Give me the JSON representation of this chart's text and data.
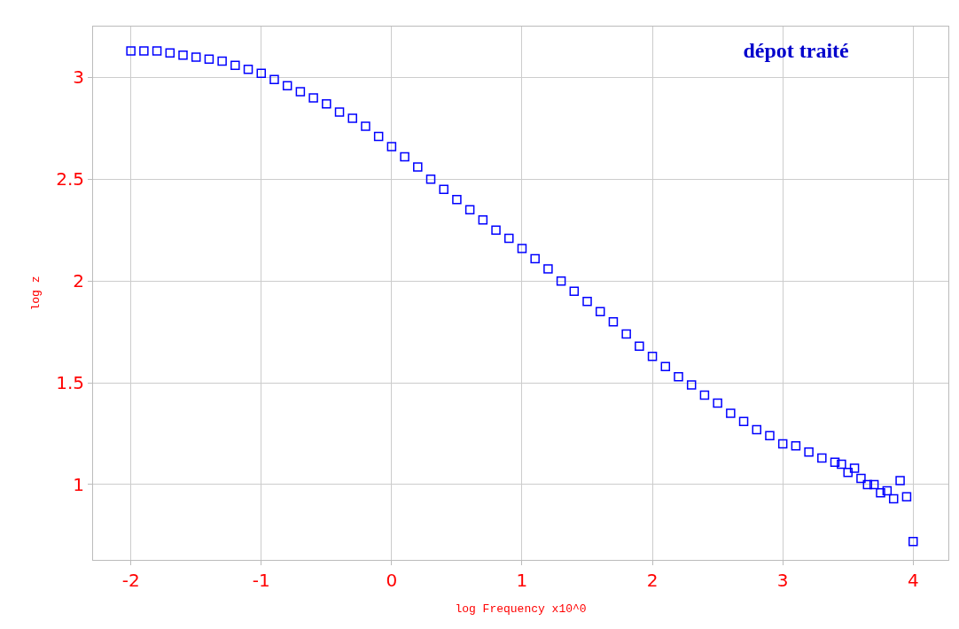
{
  "chart_data": {
    "type": "scatter",
    "title": "dépot traité",
    "xlabel": "log Frequency x10^0",
    "ylabel": "log z",
    "x": [
      -2.0,
      -1.9,
      -1.8,
      -1.7,
      -1.6,
      -1.5,
      -1.4,
      -1.3,
      -1.2,
      -1.1,
      -1.0,
      -0.9,
      -0.8,
      -0.7,
      -0.6,
      -0.5,
      -0.4,
      -0.3,
      -0.2,
      -0.1,
      0.0,
      0.1,
      0.2,
      0.3,
      0.4,
      0.5,
      0.6,
      0.7,
      0.8,
      0.9,
      1.0,
      1.1,
      1.2,
      1.3,
      1.4,
      1.5,
      1.6,
      1.7,
      1.8,
      1.9,
      2.0,
      2.1,
      2.2,
      2.3,
      2.4,
      2.5,
      2.6,
      2.7,
      2.8,
      2.9,
      3.0,
      3.1,
      3.2,
      3.3,
      3.4,
      3.45,
      3.5,
      3.55,
      3.6,
      3.65,
      3.7,
      3.75,
      3.8,
      3.85,
      3.9,
      3.95,
      4.0
    ],
    "series": [
      {
        "color": "#0000ff",
        "values": [
          3.13,
          3.13,
          3.13,
          3.12,
          3.11,
          3.1,
          3.09,
          3.08,
          3.06,
          3.04,
          3.02,
          2.99,
          2.96,
          2.93,
          2.9,
          2.87,
          2.83,
          2.8,
          2.76,
          2.71,
          2.66,
          2.61,
          2.56,
          2.5,
          2.45,
          2.4,
          2.35,
          2.3,
          2.25,
          2.21,
          2.16,
          2.11,
          2.06,
          2.0,
          1.95,
          1.9,
          1.85,
          1.8,
          1.74,
          1.68,
          1.63,
          1.58,
          1.53,
          1.49,
          1.44,
          1.4,
          1.35,
          1.31,
          1.27,
          1.24,
          1.2,
          1.19,
          1.16,
          1.13,
          1.11,
          1.1,
          1.06,
          1.08,
          1.03,
          1.0,
          1.0,
          0.96,
          0.97,
          0.93,
          1.02,
          0.94,
          0.72
        ]
      }
    ],
    "xlim": [
      -2.29,
      4.27
    ],
    "ylim": [
      0.63,
      3.25
    ],
    "xticks": [
      -2,
      -1,
      0,
      1,
      2,
      3,
      4
    ],
    "yticks": [
      1,
      1.5,
      2,
      2.5,
      3
    ],
    "grid": true,
    "marker": "square"
  }
}
